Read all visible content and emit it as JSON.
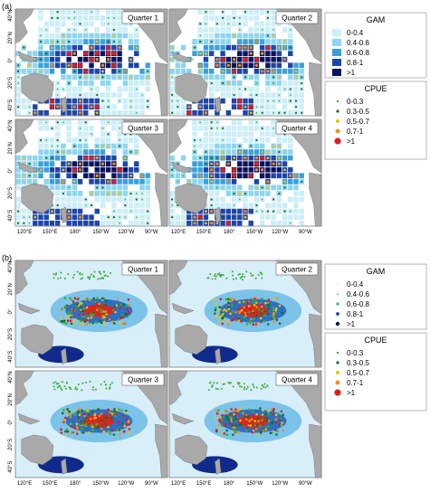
{
  "panels": [
    {
      "label": "(a)",
      "quarters": [
        "Quarter 1",
        "Quarter 2",
        "Quarter 3",
        "Quarter 4"
      ],
      "gam_legend": {
        "title": "GAM",
        "items": [
          "0-0.4",
          "0.4-0.6",
          "0.6-0.8",
          "0.8-1",
          ">1"
        ]
      },
      "cpue_legend": {
        "title": "CPUE",
        "items": [
          "0-0.3",
          "0.3-0.5",
          "0.5-0.7",
          "0.7-1",
          ">1"
        ]
      }
    },
    {
      "label": "(b)",
      "quarters": [
        "Quarter 1",
        "Quarter 2",
        "Quarter 3",
        "Quarter 4"
      ],
      "gam_legend": {
        "title": "GAM",
        "items": [
          "0-0.4",
          "0.4-0.6",
          "0.6-0.8",
          "0.8-1",
          ">1"
        ]
      },
      "cpue_legend": {
        "title": "CPUE",
        "items": [
          "0-0.3",
          "0.3-0.5",
          "0.5-0.7",
          "0.7-1",
          ">1"
        ]
      }
    }
  ],
  "lat_labels": [
    "40°N",
    "20°N",
    "0°",
    "20°S",
    "40°S"
  ],
  "lon_labels": [
    "120°E",
    "150°E",
    "180°",
    "150°W",
    "120°W",
    "90°W"
  ]
}
